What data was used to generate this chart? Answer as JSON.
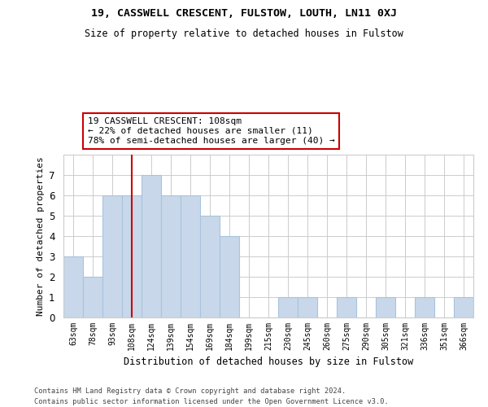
{
  "title": "19, CASSWELL CRESCENT, FULSTOW, LOUTH, LN11 0XJ",
  "subtitle": "Size of property relative to detached houses in Fulstow",
  "xlabel": "Distribution of detached houses by size in Fulstow",
  "ylabel": "Number of detached properties",
  "categories": [
    "63sqm",
    "78sqm",
    "93sqm",
    "108sqm",
    "124sqm",
    "139sqm",
    "154sqm",
    "169sqm",
    "184sqm",
    "199sqm",
    "215sqm",
    "230sqm",
    "245sqm",
    "260sqm",
    "275sqm",
    "290sqm",
    "305sqm",
    "321sqm",
    "336sqm",
    "351sqm",
    "366sqm"
  ],
  "values": [
    3,
    2,
    6,
    6,
    7,
    6,
    6,
    5,
    4,
    0,
    0,
    1,
    1,
    0,
    1,
    0,
    1,
    0,
    1,
    0,
    1
  ],
  "bar_color": "#c8d8ea",
  "bar_edgecolor": "#a8c4dc",
  "subject_index": 3,
  "subject_line_color": "#cc0000",
  "annotation_text": "19 CASSWELL CRESCENT: 108sqm\n← 22% of detached houses are smaller (11)\n78% of semi-detached houses are larger (40) →",
  "annotation_box_color": "#ffffff",
  "annotation_box_edgecolor": "#cc0000",
  "ylim": [
    0,
    8
  ],
  "yticks": [
    0,
    1,
    2,
    3,
    4,
    5,
    6,
    7
  ],
  "grid_color": "#cccccc",
  "background_color": "#ffffff",
  "footer_line1": "Contains HM Land Registry data © Crown copyright and database right 2024.",
  "footer_line2": "Contains public sector information licensed under the Open Government Licence v3.0."
}
